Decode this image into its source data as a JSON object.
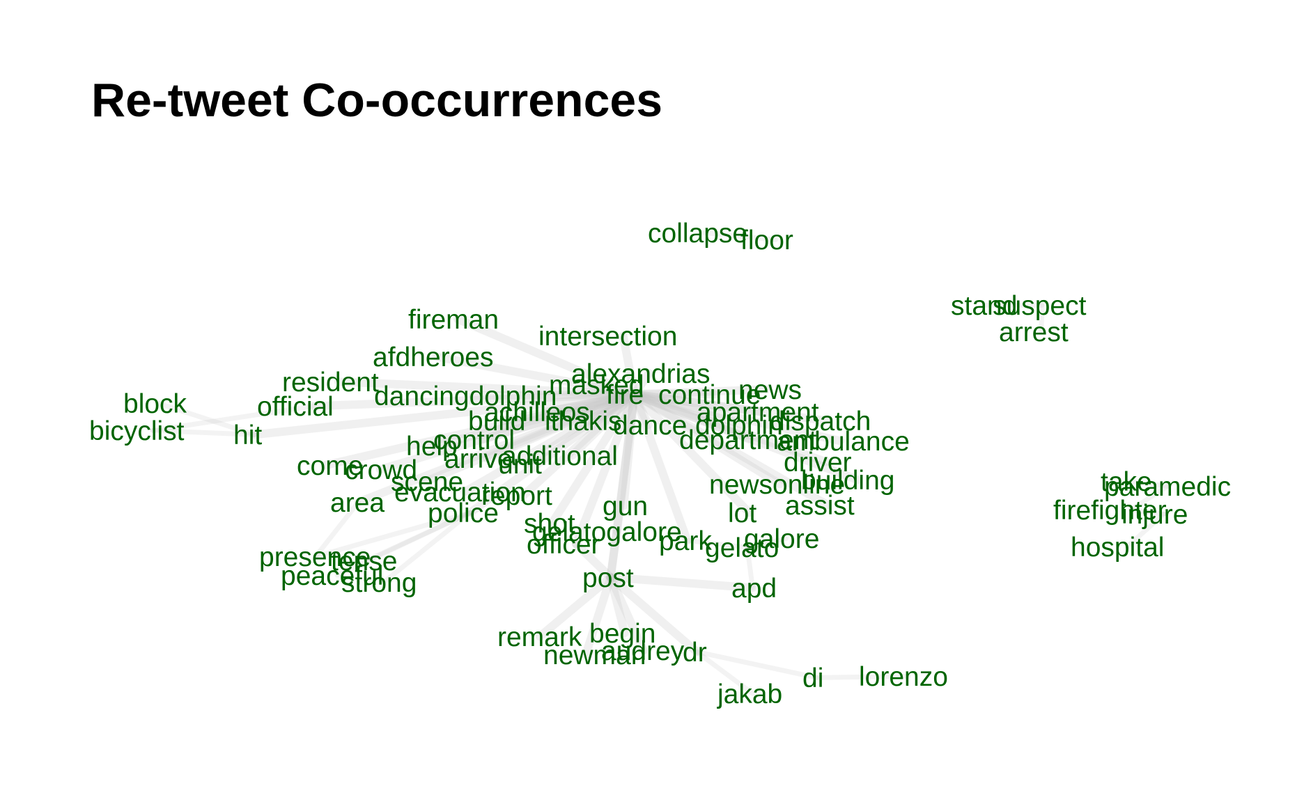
{
  "title": "Re-tweet Co-occurrences",
  "chart_data": {
    "type": "network",
    "title": "Re-tweet Co-occurrences",
    "label_color": "#006400",
    "edge_color": "#c8c8c8",
    "nodes": [
      {
        "id": "collapse"
      },
      {
        "id": "floor"
      },
      {
        "id": "stand"
      },
      {
        "id": "suspect"
      },
      {
        "id": "arrest"
      },
      {
        "id": "fireman"
      },
      {
        "id": "intersection"
      },
      {
        "id": "afdheroes"
      },
      {
        "id": "resident"
      },
      {
        "id": "alexandrias"
      },
      {
        "id": "masked"
      },
      {
        "id": "news"
      },
      {
        "id": "dancingdolphin"
      },
      {
        "id": "fire"
      },
      {
        "id": "continue"
      },
      {
        "id": "block"
      },
      {
        "id": "official"
      },
      {
        "id": "achilleos"
      },
      {
        "id": "apartment"
      },
      {
        "id": "build"
      },
      {
        "id": "ithakis"
      },
      {
        "id": "dispatch"
      },
      {
        "id": "bicyclist"
      },
      {
        "id": "hit"
      },
      {
        "id": "dance"
      },
      {
        "id": "dolphin"
      },
      {
        "id": "control"
      },
      {
        "id": "department"
      },
      {
        "id": "ambulance"
      },
      {
        "id": "help"
      },
      {
        "id": "arrive"
      },
      {
        "id": "additional"
      },
      {
        "id": "unit"
      },
      {
        "id": "come"
      },
      {
        "id": "crowd"
      },
      {
        "id": "driver"
      },
      {
        "id": "newsonline"
      },
      {
        "id": "building"
      },
      {
        "id": "scene"
      },
      {
        "id": "take"
      },
      {
        "id": "paramedic"
      },
      {
        "id": "evacuation"
      },
      {
        "id": "report"
      },
      {
        "id": "area"
      },
      {
        "id": "gun"
      },
      {
        "id": "assist"
      },
      {
        "id": "police"
      },
      {
        "id": "lot"
      },
      {
        "id": "firefighter"
      },
      {
        "id": "injure"
      },
      {
        "id": "shot"
      },
      {
        "id": "gelatogalore"
      },
      {
        "id": "park"
      },
      {
        "id": "galore"
      },
      {
        "id": "officer"
      },
      {
        "id": "gelato"
      },
      {
        "id": "hospital"
      },
      {
        "id": "presence"
      },
      {
        "id": "tense"
      },
      {
        "id": "peaceful"
      },
      {
        "id": "strong"
      },
      {
        "id": "post"
      },
      {
        "id": "apd"
      },
      {
        "id": "begin"
      },
      {
        "id": "remark"
      },
      {
        "id": "audrey"
      },
      {
        "id": "newman"
      },
      {
        "id": "dr"
      },
      {
        "id": "di"
      },
      {
        "id": "lorenzo"
      },
      {
        "id": "jakab"
      }
    ],
    "edges": [
      [
        "fire",
        "news"
      ],
      [
        "fire",
        "continue"
      ],
      [
        "fire",
        "masked"
      ],
      [
        "fire",
        "alexandrias"
      ],
      [
        "fire",
        "intersection"
      ],
      [
        "fire",
        "dancingdolphin"
      ],
      [
        "fire",
        "dance"
      ],
      [
        "fire",
        "dolphin"
      ],
      [
        "fire",
        "apartment"
      ],
      [
        "fire",
        "dispatch"
      ],
      [
        "fire",
        "department"
      ],
      [
        "fire",
        "ambulance"
      ],
      [
        "fire",
        "driver"
      ],
      [
        "fire",
        "building"
      ],
      [
        "fire",
        "newsonline"
      ],
      [
        "fire",
        "assist"
      ],
      [
        "fire",
        "lot"
      ],
      [
        "fire",
        "gun"
      ],
      [
        "fire",
        "shot"
      ],
      [
        "fire",
        "report"
      ],
      [
        "fire",
        "evacuation"
      ],
      [
        "fire",
        "scene"
      ],
      [
        "fire",
        "crowd"
      ],
      [
        "fire",
        "come"
      ],
      [
        "fire",
        "help"
      ],
      [
        "fire",
        "control"
      ],
      [
        "fire",
        "arrive"
      ],
      [
        "fire",
        "additional"
      ],
      [
        "fire",
        "unit"
      ],
      [
        "fire",
        "build"
      ],
      [
        "fire",
        "ithakis"
      ],
      [
        "fire",
        "achilleos"
      ],
      [
        "fire",
        "police"
      ],
      [
        "fire",
        "area"
      ],
      [
        "fire",
        "officer"
      ],
      [
        "fire",
        "post"
      ],
      [
        "fire",
        "park"
      ],
      [
        "fire",
        "gelatogalore"
      ],
      [
        "fire",
        "official"
      ],
      [
        "fire",
        "resident"
      ],
      [
        "fire",
        "afdheroes"
      ],
      [
        "fire",
        "fireman"
      ],
      [
        "fire",
        "hit"
      ],
      [
        "hit",
        "bicyclist"
      ],
      [
        "hit",
        "block"
      ],
      [
        "official",
        "bicyclist"
      ],
      [
        "police",
        "presence"
      ],
      [
        "police",
        "tense"
      ],
      [
        "police",
        "peaceful"
      ],
      [
        "police",
        "strong"
      ],
      [
        "area",
        "presence"
      ],
      [
        "post",
        "begin"
      ],
      [
        "post",
        "remark"
      ],
      [
        "post",
        "audrey"
      ],
      [
        "post",
        "newman"
      ],
      [
        "post",
        "dr"
      ],
      [
        "post",
        "apd"
      ],
      [
        "post",
        "officer"
      ],
      [
        "post",
        "gelatogalore"
      ],
      [
        "dr",
        "jakab"
      ],
      [
        "dr",
        "di"
      ],
      [
        "di",
        "lorenzo"
      ],
      [
        "gelato",
        "galore"
      ],
      [
        "gelato",
        "apd"
      ],
      [
        "park",
        "gelato"
      ],
      [
        "collapse",
        "floor"
      ],
      [
        "stand",
        "suspect"
      ],
      [
        "suspect",
        "arrest"
      ],
      [
        "take",
        "paramedic"
      ],
      [
        "firefighter",
        "injure"
      ],
      [
        "injure",
        "hospital"
      ],
      [
        "firefighter",
        "paramedic"
      ]
    ]
  }
}
